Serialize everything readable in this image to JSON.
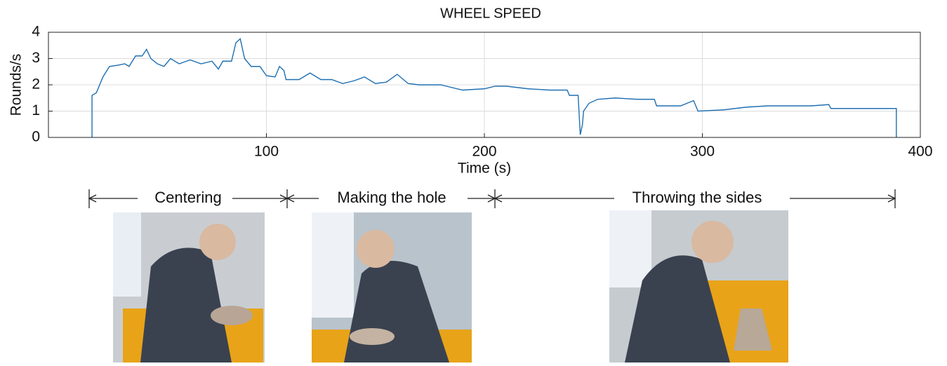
{
  "chart_data": {
    "type": "line",
    "title": "WHEEL SPEED",
    "x_label": "Time (s)",
    "y_label": "Rounds/s",
    "x": [
      20,
      20,
      22,
      25,
      28,
      32,
      35,
      37,
      40,
      43,
      45,
      47,
      50,
      53,
      56,
      60,
      65,
      70,
      75,
      78,
      80,
      84,
      86,
      88,
      90,
      93,
      97,
      100,
      104,
      106,
      108,
      109,
      115,
      120,
      125,
      130,
      135,
      140,
      145,
      150,
      155,
      160,
      165,
      170,
      180,
      190,
      200,
      205,
      210,
      220,
      230,
      238,
      239,
      243,
      244,
      245,
      245.5,
      248,
      252,
      260,
      270,
      278,
      279,
      290,
      296,
      298,
      310,
      320,
      330,
      340,
      350,
      358,
      359,
      389,
      389
    ],
    "values": [
      0,
      1.6,
      1.7,
      2.3,
      2.7,
      2.75,
      2.8,
      2.7,
      3.1,
      3.1,
      3.35,
      3.0,
      2.8,
      2.7,
      3.0,
      2.8,
      2.95,
      2.8,
      2.9,
      2.6,
      2.9,
      2.9,
      3.6,
      3.75,
      3.0,
      2.7,
      2.7,
      2.35,
      2.3,
      2.7,
      2.55,
      2.2,
      2.2,
      2.45,
      2.2,
      2.2,
      2.05,
      2.15,
      2.3,
      2.05,
      2.1,
      2.4,
      2.05,
      2.0,
      2.0,
      1.8,
      1.85,
      1.95,
      1.95,
      1.85,
      1.8,
      1.8,
      1.6,
      1.6,
      0.1,
      0.5,
      1.0,
      1.3,
      1.45,
      1.5,
      1.45,
      1.45,
      1.2,
      1.2,
      1.4,
      1.0,
      1.05,
      1.15,
      1.2,
      1.2,
      1.2,
      1.25,
      1.1,
      1.1,
      0
    ],
    "color": "#1f6fb2",
    "xlim": [
      0,
      400
    ],
    "xticks": [
      100,
      200,
      300,
      400
    ],
    "ylim": [
      0,
      4
    ],
    "yticks": [
      0,
      1,
      2,
      3,
      4
    ],
    "grid": true,
    "annotations": [
      "Centering",
      "Making the hole",
      "Throwing the sides"
    ]
  }
}
